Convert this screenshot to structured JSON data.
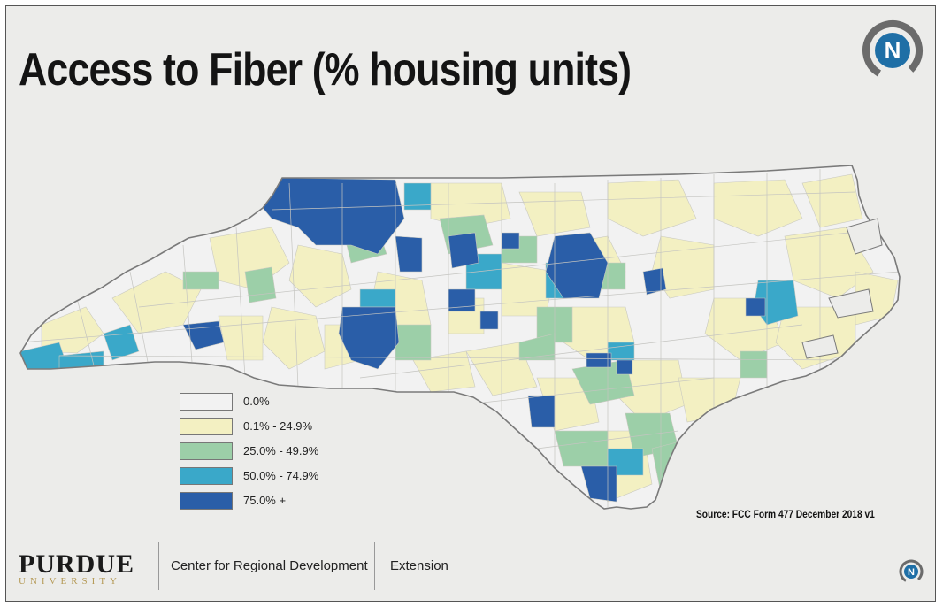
{
  "title": "Access to Fiber (% housing units)",
  "legend": [
    {
      "label": "0.0%",
      "color": "#f2f2f2"
    },
    {
      "label": "0.1% - 24.9%",
      "color": "#f3f0c2"
    },
    {
      "label": "25.0% - 49.9%",
      "color": "#9ccfa8"
    },
    {
      "label": "50.0% - 74.9%",
      "color": "#3aa8c9"
    },
    {
      "label": "75.0% +",
      "color": "#2a5ea8"
    }
  ],
  "source": "Source: FCC Form 477 December 2018 v1",
  "footer": {
    "university_name": "PURDUE",
    "university_sub": "UNIVERSITY",
    "center": "Center for Regional Development",
    "extension": "Extension"
  },
  "colors": {
    "logo_blue": "#1f6fa6",
    "logo_gray": "#6b6b6b",
    "state_outline": "#7a7a7a"
  }
}
